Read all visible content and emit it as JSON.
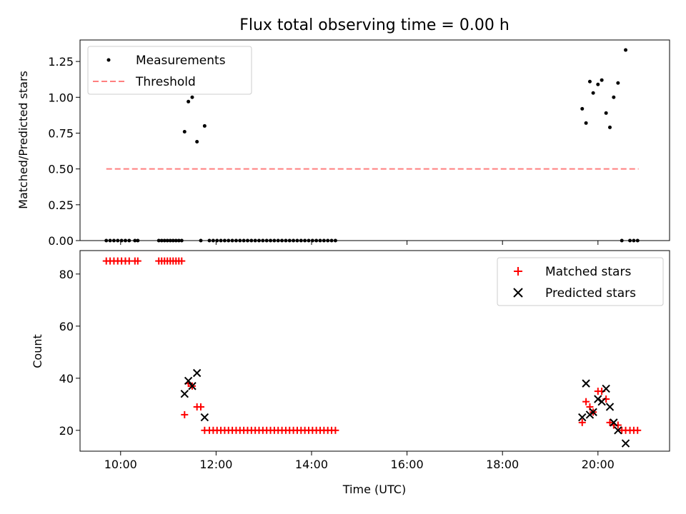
{
  "figure_title": "Flux total observing time = 0.00 h",
  "colors": {
    "measure": "#000000",
    "threshold": "#ff7f7f",
    "matched": "#ff0000",
    "predicted": "#000000"
  },
  "chart_data": [
    {
      "type": "scatter",
      "title": "Flux total observing time = 0.00 h",
      "xlabel": "",
      "ylabel": "Matched/Predicted stars",
      "xlim": [
        9.15,
        21.5
      ],
      "ylim": [
        0,
        1.4
      ],
      "yticks": [
        "0.00",
        "0.25",
        "0.50",
        "0.75",
        "1.00",
        "1.25"
      ],
      "ytick_values": [
        0,
        0.25,
        0.5,
        0.75,
        1.0,
        1.25
      ],
      "legend_position": "upper-left",
      "series": [
        {
          "name": "Measurements",
          "x": [
            9.7,
            9.78,
            9.86,
            9.94,
            10.02,
            10.1,
            10.18,
            10.3,
            10.36,
            10.8,
            10.86,
            10.92,
            10.98,
            11.04,
            11.1,
            11.16,
            11.22,
            11.28,
            11.34,
            11.42,
            11.5,
            11.6,
            11.68,
            11.76,
            11.86,
            11.94,
            12.02,
            12.1,
            12.18,
            12.26,
            12.34,
            12.42,
            12.5,
            12.58,
            12.66,
            12.74,
            12.82,
            12.9,
            12.98,
            13.06,
            13.14,
            13.22,
            13.3,
            13.38,
            13.46,
            13.54,
            13.62,
            13.7,
            13.78,
            13.86,
            13.94,
            14.02,
            14.1,
            14.18,
            14.26,
            14.34,
            14.42,
            14.5,
            19.67,
            19.75,
            19.83,
            19.9,
            20.0,
            20.08,
            20.17,
            20.25,
            20.33,
            20.42,
            20.5,
            20.58,
            20.67,
            20.75,
            20.83
          ],
          "y": [
            0,
            0,
            0,
            0,
            0,
            0,
            0,
            0,
            0,
            0,
            0,
            0,
            0,
            0,
            0,
            0,
            0,
            0,
            0.76,
            0.97,
            1.0,
            0.69,
            0,
            0.8,
            0,
            0,
            0,
            0,
            0,
            0,
            0,
            0,
            0,
            0,
            0,
            0,
            0,
            0,
            0,
            0,
            0,
            0,
            0,
            0,
            0,
            0,
            0,
            0,
            0,
            0,
            0,
            0,
            0,
            0,
            0,
            0,
            0,
            0,
            0.92,
            0.82,
            1.11,
            1.03,
            1.09,
            1.12,
            0.89,
            0.79,
            1.0,
            1.1,
            0,
            1.33,
            0,
            0,
            0
          ]
        },
        {
          "name": "Threshold",
          "x": [
            9.7,
            20.85
          ],
          "y": [
            0.5,
            0.5
          ]
        }
      ]
    },
    {
      "type": "scatter",
      "title": "",
      "xlabel": "Time (UTC)",
      "ylabel": "Count",
      "xlim": [
        9.15,
        21.5
      ],
      "ylim": [
        12,
        89
      ],
      "yticks": [
        "20",
        "40",
        "60",
        "80"
      ],
      "ytick_values": [
        20,
        40,
        60,
        80
      ],
      "xticks": [
        "10:00",
        "12:00",
        "14:00",
        "16:00",
        "18:00",
        "20:00"
      ],
      "xtick_values": [
        10,
        12,
        14,
        16,
        18,
        20
      ],
      "legend_position": "upper-right",
      "series": [
        {
          "name": "Matched stars",
          "x": [
            9.7,
            9.78,
            9.86,
            9.94,
            10.02,
            10.1,
            10.18,
            10.3,
            10.36,
            10.8,
            10.86,
            10.92,
            10.98,
            11.04,
            11.1,
            11.16,
            11.22,
            11.28,
            11.34,
            11.42,
            11.5,
            11.6,
            11.68,
            11.76,
            11.86,
            11.94,
            12.02,
            12.1,
            12.18,
            12.26,
            12.34,
            12.42,
            12.5,
            12.58,
            12.66,
            12.74,
            12.82,
            12.9,
            12.98,
            13.06,
            13.14,
            13.22,
            13.3,
            13.38,
            13.46,
            13.54,
            13.62,
            13.7,
            13.78,
            13.86,
            13.94,
            14.02,
            14.1,
            14.18,
            14.26,
            14.34,
            14.42,
            14.5,
            19.67,
            19.75,
            19.83,
            19.9,
            20.0,
            20.08,
            20.17,
            20.25,
            20.33,
            20.42,
            20.5,
            20.58,
            20.67,
            20.75,
            20.83
          ],
          "y": [
            85,
            85,
            85,
            85,
            85,
            85,
            85,
            85,
            85,
            85,
            85,
            85,
            85,
            85,
            85,
            85,
            85,
            85,
            26,
            38,
            37,
            29,
            29,
            20,
            20,
            20,
            20,
            20,
            20,
            20,
            20,
            20,
            20,
            20,
            20,
            20,
            20,
            20,
            20,
            20,
            20,
            20,
            20,
            20,
            20,
            20,
            20,
            20,
            20,
            20,
            20,
            20,
            20,
            20,
            20,
            20,
            20,
            20,
            23,
            31,
            29,
            27,
            35,
            35,
            32,
            23,
            22,
            22,
            20,
            20,
            20,
            20,
            20
          ]
        },
        {
          "name": "Predicted stars",
          "x": [
            11.34,
            11.42,
            11.5,
            11.6,
            11.76,
            19.67,
            19.75,
            19.83,
            19.9,
            20.0,
            20.08,
            20.17,
            20.25,
            20.33,
            20.42,
            20.58
          ],
          "y": [
            34,
            39,
            37,
            42,
            25,
            25,
            38,
            26,
            27,
            32,
            31,
            36,
            29,
            23,
            20,
            15
          ]
        }
      ]
    }
  ]
}
